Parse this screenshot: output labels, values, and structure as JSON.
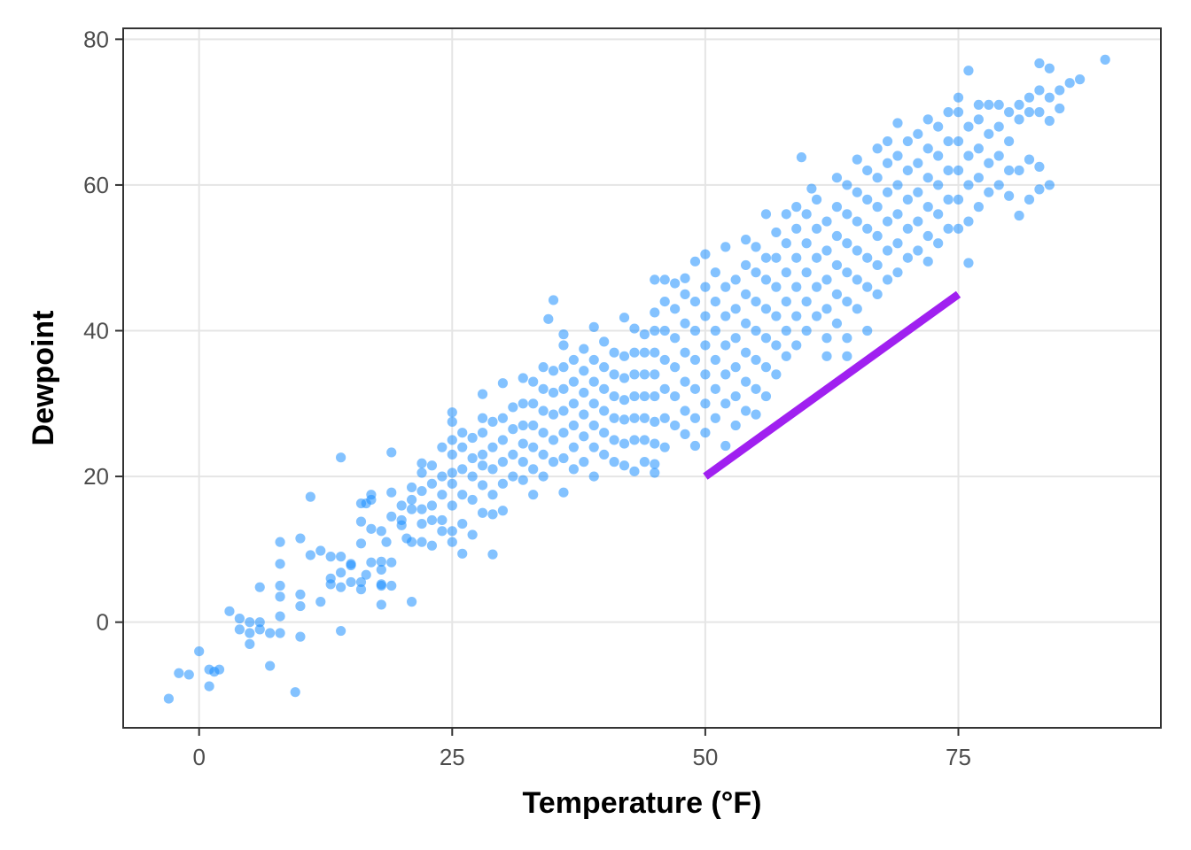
{
  "chart_data": {
    "type": "scatter",
    "xlabel": "Temperature (°F)",
    "ylabel": "Dewpoint",
    "xlim": [
      -7.5,
      95
    ],
    "ylim": [
      -14.5,
      81.5
    ],
    "x_ticks": [
      0,
      25,
      50,
      75
    ],
    "x_tick_labels": [
      "0",
      "25",
      "50",
      "75"
    ],
    "y_ticks": [
      0,
      20,
      40,
      60,
      80
    ],
    "y_tick_labels": [
      "0",
      "20",
      "40",
      "60",
      "80"
    ],
    "grid": true,
    "point_color": "#1E90FF",
    "point_opacity": 0.55,
    "annotation_line": {
      "x": [
        50,
        75
      ],
      "y": [
        20,
        45
      ],
      "color": "#A020F0"
    },
    "points": [
      [
        -3,
        -10.5
      ],
      [
        -2,
        -7
      ],
      [
        -1,
        -7.2
      ],
      [
        0,
        -4
      ],
      [
        1,
        -6.5
      ],
      [
        1,
        -8.8
      ],
      [
        1.5,
        -6.8
      ],
      [
        2,
        -6.5
      ],
      [
        3,
        1.5
      ],
      [
        4,
        0.5
      ],
      [
        4,
        -1
      ],
      [
        5,
        0
      ],
      [
        5,
        -1.5
      ],
      [
        5,
        -3
      ],
      [
        6,
        0
      ],
      [
        6,
        -1
      ],
      [
        6,
        4.8
      ],
      [
        7,
        -6
      ],
      [
        7,
        -1.5
      ],
      [
        8,
        -1.5
      ],
      [
        8,
        0.8
      ],
      [
        8,
        3.5
      ],
      [
        8,
        5
      ],
      [
        8,
        8
      ],
      [
        8,
        11
      ],
      [
        9.5,
        -9.6
      ],
      [
        10,
        -2
      ],
      [
        10,
        2.2
      ],
      [
        10,
        3.8
      ],
      [
        10,
        11.5
      ],
      [
        11,
        9.2
      ],
      [
        11,
        17.2
      ],
      [
        12,
        2.8
      ],
      [
        12,
        9.8
      ],
      [
        13,
        5.2
      ],
      [
        13,
        6
      ],
      [
        13,
        9
      ],
      [
        14,
        -1.2
      ],
      [
        14,
        4.8
      ],
      [
        14,
        6.8
      ],
      [
        14,
        9
      ],
      [
        14,
        22.6
      ],
      [
        15,
        5.5
      ],
      [
        15,
        7.8
      ],
      [
        15,
        8
      ],
      [
        16,
        4.5
      ],
      [
        16,
        5.5
      ],
      [
        16,
        10.8
      ],
      [
        16,
        13.8
      ],
      [
        16,
        16.3
      ],
      [
        16.5,
        6.5
      ],
      [
        16.5,
        16.3
      ],
      [
        17,
        8.2
      ],
      [
        17,
        12.8
      ],
      [
        17,
        16.8
      ],
      [
        17,
        17.5
      ],
      [
        18,
        2.4
      ],
      [
        18,
        5
      ],
      [
        18,
        5.2
      ],
      [
        18,
        7.2
      ],
      [
        18,
        8.3
      ],
      [
        18,
        12.5
      ],
      [
        18.5,
        11
      ],
      [
        19,
        5
      ],
      [
        19,
        8.2
      ],
      [
        19,
        14.5
      ],
      [
        19,
        17.8
      ],
      [
        19,
        23.3
      ],
      [
        20,
        13.3
      ],
      [
        20,
        14
      ],
      [
        20,
        16
      ],
      [
        20.5,
        11.5
      ],
      [
        21,
        2.8
      ],
      [
        21,
        11
      ],
      [
        21,
        15.5
      ],
      [
        21,
        16.8
      ],
      [
        21,
        18.5
      ],
      [
        22,
        11
      ],
      [
        22,
        13.5
      ],
      [
        22,
        15.5
      ],
      [
        22,
        18
      ],
      [
        22,
        20.5
      ],
      [
        22,
        21.8
      ],
      [
        23,
        10.5
      ],
      [
        23,
        14
      ],
      [
        23,
        16
      ],
      [
        23,
        19
      ],
      [
        23,
        21.5
      ],
      [
        24,
        12.5
      ],
      [
        24,
        14
      ],
      [
        24,
        17.5
      ],
      [
        24,
        20
      ],
      [
        24,
        24
      ],
      [
        25,
        11
      ],
      [
        25,
        12.5
      ],
      [
        25,
        16
      ],
      [
        25,
        19
      ],
      [
        25,
        20.5
      ],
      [
        25,
        23
      ],
      [
        25,
        25
      ],
      [
        25,
        27.5
      ],
      [
        25,
        28.8
      ],
      [
        26,
        9.4
      ],
      [
        26,
        13.5
      ],
      [
        26,
        17.5
      ],
      [
        26,
        21
      ],
      [
        26,
        24
      ],
      [
        26,
        26
      ],
      [
        27,
        12
      ],
      [
        27,
        16.8
      ],
      [
        27,
        20
      ],
      [
        27,
        22.5
      ],
      [
        27,
        25.3
      ],
      [
        28,
        15
      ],
      [
        28,
        18.8
      ],
      [
        28,
        21.5
      ],
      [
        28,
        23
      ],
      [
        28,
        26
      ],
      [
        28,
        28
      ],
      [
        28,
        31.3
      ],
      [
        29,
        9.3
      ],
      [
        29,
        14.8
      ],
      [
        29,
        17.5
      ],
      [
        29,
        21
      ],
      [
        29,
        24
      ],
      [
        29,
        27.5
      ],
      [
        30,
        15.3
      ],
      [
        30,
        19
      ],
      [
        30,
        22
      ],
      [
        30,
        25
      ],
      [
        30,
        28
      ],
      [
        30,
        32.8
      ],
      [
        31,
        20
      ],
      [
        31,
        23
      ],
      [
        31,
        26.5
      ],
      [
        31,
        29.5
      ],
      [
        32,
        19.5
      ],
      [
        32,
        22
      ],
      [
        32,
        24.5
      ],
      [
        32,
        27
      ],
      [
        32,
        30
      ],
      [
        32,
        33.5
      ],
      [
        33,
        17.5
      ],
      [
        33,
        21
      ],
      [
        33,
        24
      ],
      [
        33,
        27
      ],
      [
        33,
        30
      ],
      [
        33,
        33
      ],
      [
        34,
        20
      ],
      [
        34,
        23
      ],
      [
        34,
        26
      ],
      [
        34,
        29
      ],
      [
        34,
        32
      ],
      [
        34,
        35
      ],
      [
        34.5,
        41.6
      ],
      [
        35,
        44.2
      ],
      [
        35,
        22
      ],
      [
        35,
        25
      ],
      [
        35,
        28.5
      ],
      [
        35,
        31.5
      ],
      [
        35,
        34.5
      ],
      [
        36,
        17.8
      ],
      [
        36,
        22.5
      ],
      [
        36,
        26
      ],
      [
        36,
        29
      ],
      [
        36,
        32
      ],
      [
        36,
        35
      ],
      [
        36,
        38
      ],
      [
        36,
        39.5
      ],
      [
        37,
        21
      ],
      [
        37,
        24
      ],
      [
        37,
        27
      ],
      [
        37,
        30
      ],
      [
        37,
        33
      ],
      [
        37,
        36
      ],
      [
        38,
        22
      ],
      [
        38,
        25.5
      ],
      [
        38,
        28.5
      ],
      [
        38,
        31.5
      ],
      [
        38,
        34.5
      ],
      [
        38,
        37.5
      ],
      [
        39,
        20
      ],
      [
        39,
        24
      ],
      [
        39,
        27
      ],
      [
        39,
        30
      ],
      [
        39,
        33
      ],
      [
        39,
        36
      ],
      [
        39,
        40.5
      ],
      [
        40,
        23
      ],
      [
        40,
        26
      ],
      [
        40,
        29
      ],
      [
        40,
        32
      ],
      [
        40,
        35
      ],
      [
        40,
        38.5
      ],
      [
        41,
        22
      ],
      [
        41,
        25
      ],
      [
        41,
        28
      ],
      [
        41,
        31
      ],
      [
        41,
        34
      ],
      [
        41,
        37
      ],
      [
        42,
        21.5
      ],
      [
        42,
        24.5
      ],
      [
        42,
        27.8
      ],
      [
        42,
        30.5
      ],
      [
        42,
        33.5
      ],
      [
        42,
        36.5
      ],
      [
        42,
        41.8
      ],
      [
        43,
        20.7
      ],
      [
        43,
        25
      ],
      [
        43,
        28
      ],
      [
        43,
        31
      ],
      [
        43,
        34
      ],
      [
        43,
        37
      ],
      [
        43,
        40.3
      ],
      [
        44,
        22
      ],
      [
        44,
        25
      ],
      [
        44,
        28
      ],
      [
        44,
        31
      ],
      [
        44,
        34
      ],
      [
        44,
        37
      ],
      [
        44,
        39.5
      ],
      [
        45,
        20.5
      ],
      [
        45,
        21.7
      ],
      [
        45,
        24.5
      ],
      [
        45,
        27.5
      ],
      [
        45,
        31
      ],
      [
        45,
        34
      ],
      [
        45,
        37
      ],
      [
        45,
        40
      ],
      [
        45,
        42.5
      ],
      [
        45,
        47
      ],
      [
        46,
        24
      ],
      [
        46,
        28
      ],
      [
        46,
        32
      ],
      [
        46,
        36
      ],
      [
        46,
        40
      ],
      [
        46,
        44
      ],
      [
        46,
        47
      ],
      [
        47,
        27
      ],
      [
        47,
        31
      ],
      [
        47,
        35
      ],
      [
        47,
        39
      ],
      [
        47,
        43
      ],
      [
        47,
        46.5
      ],
      [
        48,
        25.8
      ],
      [
        48,
        29
      ],
      [
        48,
        33
      ],
      [
        48,
        37
      ],
      [
        48,
        41
      ],
      [
        48,
        45
      ],
      [
        48,
        47.2
      ],
      [
        49,
        24.2
      ],
      [
        49,
        28
      ],
      [
        49,
        32
      ],
      [
        49,
        36
      ],
      [
        49,
        40
      ],
      [
        49,
        44
      ],
      [
        49,
        49.5
      ],
      [
        50,
        26
      ],
      [
        50,
        30
      ],
      [
        50,
        34
      ],
      [
        50,
        38
      ],
      [
        50,
        42
      ],
      [
        50,
        46
      ],
      [
        50,
        50.5
      ],
      [
        51,
        28
      ],
      [
        51,
        32
      ],
      [
        51,
        36
      ],
      [
        51,
        40
      ],
      [
        51,
        44
      ],
      [
        51,
        48
      ],
      [
        52,
        24.2
      ],
      [
        52,
        30
      ],
      [
        52,
        34
      ],
      [
        52,
        38
      ],
      [
        52,
        42
      ],
      [
        52,
        46
      ],
      [
        52,
        51.5
      ],
      [
        53,
        27
      ],
      [
        53,
        31
      ],
      [
        53,
        35
      ],
      [
        53,
        39
      ],
      [
        53,
        43
      ],
      [
        53,
        47
      ],
      [
        54,
        29
      ],
      [
        54,
        33
      ],
      [
        54,
        37
      ],
      [
        54,
        41
      ],
      [
        54,
        45
      ],
      [
        54,
        49
      ],
      [
        54,
        52.5
      ],
      [
        55,
        28.5
      ],
      [
        55,
        32
      ],
      [
        55,
        36
      ],
      [
        55,
        40
      ],
      [
        55,
        44
      ],
      [
        55,
        48
      ],
      [
        55,
        51.5
      ],
      [
        56,
        31
      ],
      [
        56,
        35
      ],
      [
        56,
        39
      ],
      [
        56,
        43
      ],
      [
        56,
        47
      ],
      [
        56,
        50
      ],
      [
        56,
        56
      ],
      [
        57,
        34
      ],
      [
        57,
        38
      ],
      [
        57,
        42
      ],
      [
        57,
        46
      ],
      [
        57,
        50
      ],
      [
        57,
        53.5
      ],
      [
        58,
        36.5
      ],
      [
        58,
        40
      ],
      [
        58,
        44
      ],
      [
        58,
        48
      ],
      [
        58,
        52
      ],
      [
        58,
        56
      ],
      [
        59,
        38
      ],
      [
        59,
        42
      ],
      [
        59,
        46
      ],
      [
        59,
        50
      ],
      [
        59,
        54
      ],
      [
        59,
        57
      ],
      [
        59.5,
        63.8
      ],
      [
        60,
        40
      ],
      [
        60,
        44
      ],
      [
        60,
        48
      ],
      [
        60,
        52
      ],
      [
        60,
        56
      ],
      [
        60.5,
        59.5
      ],
      [
        61,
        42
      ],
      [
        61,
        46
      ],
      [
        61,
        50
      ],
      [
        61,
        54
      ],
      [
        61,
        58
      ],
      [
        62,
        36.5
      ],
      [
        62,
        39
      ],
      [
        62,
        43
      ],
      [
        62,
        47
      ],
      [
        62,
        51
      ],
      [
        62,
        55
      ],
      [
        63,
        41
      ],
      [
        63,
        45
      ],
      [
        63,
        49
      ],
      [
        63,
        53
      ],
      [
        63,
        57
      ],
      [
        63,
        61
      ],
      [
        64,
        36.5
      ],
      [
        64,
        39
      ],
      [
        64,
        44
      ],
      [
        64,
        48
      ],
      [
        64,
        52
      ],
      [
        64,
        56
      ],
      [
        64,
        60
      ],
      [
        65,
        43
      ],
      [
        65,
        47
      ],
      [
        65,
        51
      ],
      [
        65,
        55
      ],
      [
        65,
        59
      ],
      [
        65,
        63.5
      ],
      [
        66,
        40
      ],
      [
        66,
        46
      ],
      [
        66,
        50
      ],
      [
        66,
        54
      ],
      [
        66,
        58
      ],
      [
        66,
        62
      ],
      [
        67,
        45
      ],
      [
        67,
        49
      ],
      [
        67,
        53
      ],
      [
        67,
        57
      ],
      [
        67,
        61
      ],
      [
        67,
        65
      ],
      [
        68,
        47
      ],
      [
        68,
        51
      ],
      [
        68,
        55
      ],
      [
        68,
        59
      ],
      [
        68,
        63
      ],
      [
        68,
        66
      ],
      [
        69,
        48
      ],
      [
        69,
        52
      ],
      [
        69,
        56
      ],
      [
        69,
        60
      ],
      [
        69,
        64
      ],
      [
        69,
        68.5
      ],
      [
        70,
        50
      ],
      [
        70,
        54
      ],
      [
        70,
        58
      ],
      [
        70,
        62
      ],
      [
        70,
        66
      ],
      [
        71,
        51
      ],
      [
        71,
        55
      ],
      [
        71,
        59
      ],
      [
        71,
        63
      ],
      [
        71,
        67
      ],
      [
        72,
        49.5
      ],
      [
        72,
        53
      ],
      [
        72,
        57
      ],
      [
        72,
        61
      ],
      [
        72,
        65
      ],
      [
        72,
        69
      ],
      [
        73,
        52
      ],
      [
        73,
        56
      ],
      [
        73,
        60
      ],
      [
        73,
        64
      ],
      [
        73,
        68
      ],
      [
        74,
        54
      ],
      [
        74,
        58
      ],
      [
        74,
        62
      ],
      [
        74,
        66
      ],
      [
        74,
        70
      ],
      [
        75,
        54
      ],
      [
        75,
        58
      ],
      [
        75,
        62
      ],
      [
        75,
        66
      ],
      [
        75,
        70
      ],
      [
        75,
        72
      ],
      [
        76,
        49.3
      ],
      [
        76,
        55
      ],
      [
        76,
        60
      ],
      [
        76,
        64
      ],
      [
        76,
        68
      ],
      [
        76,
        75.7
      ],
      [
        77,
        57
      ],
      [
        77,
        61
      ],
      [
        77,
        65
      ],
      [
        77,
        69
      ],
      [
        77,
        71
      ],
      [
        78,
        59
      ],
      [
        78,
        63
      ],
      [
        78,
        67
      ],
      [
        78,
        71
      ],
      [
        79,
        60
      ],
      [
        79,
        64
      ],
      [
        79,
        68
      ],
      [
        79,
        71
      ],
      [
        80,
        58.5
      ],
      [
        80,
        62
      ],
      [
        80,
        66
      ],
      [
        80,
        70
      ],
      [
        81,
        55.8
      ],
      [
        81,
        62
      ],
      [
        81,
        69
      ],
      [
        81,
        71
      ],
      [
        82,
        58
      ],
      [
        82,
        63.5
      ],
      [
        82,
        70
      ],
      [
        82,
        72
      ],
      [
        83,
        59.4
      ],
      [
        83,
        62.5
      ],
      [
        83,
        70
      ],
      [
        83,
        73
      ],
      [
        83,
        76.7
      ],
      [
        84,
        60
      ],
      [
        84,
        68.8
      ],
      [
        84,
        72
      ],
      [
        84,
        76
      ],
      [
        85,
        70.5
      ],
      [
        85,
        73
      ],
      [
        86,
        74
      ],
      [
        87,
        74.5
      ],
      [
        89.5,
        77.2
      ]
    ]
  }
}
